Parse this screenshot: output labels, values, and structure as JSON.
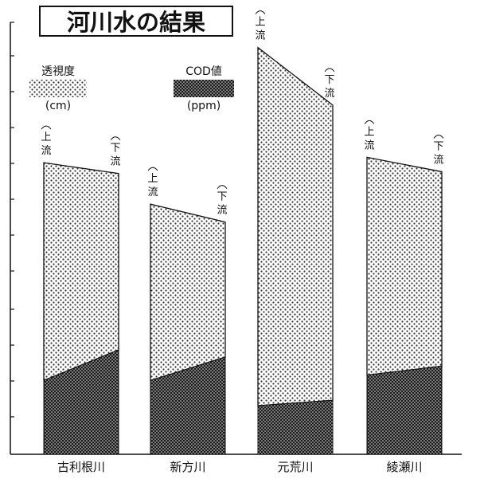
{
  "chart_data": {
    "type": "area",
    "title": "河川水の結果",
    "legend": [
      {
        "name": "透視度",
        "unit": "(cm)",
        "pattern": "light-dots"
      },
      {
        "name": "COD値",
        "unit": "(ppm)",
        "pattern": "dark-dots"
      }
    ],
    "point_labels": {
      "upstream": "上流",
      "downstream": "下流"
    },
    "categories": [
      "古利根川",
      "新方川",
      "元荒川",
      "綾瀬川"
    ],
    "series": [
      {
        "name": "透視度",
        "upstream": [
          16.2,
          13.9,
          22.6,
          16.5
        ],
        "downstream": [
          15.6,
          12.9,
          19.4,
          15.7
        ]
      },
      {
        "name": "COD値",
        "upstream": [
          4.1,
          4.1,
          2.7,
          4.4
        ],
        "downstream": [
          5.8,
          5.4,
          3.0,
          4.9
        ]
      }
    ],
    "ylim": [
      0,
      24
    ],
    "colors": {
      "axis": "#111111",
      "dots_light": "#333333",
      "dots_dark": "#111111",
      "paper": "#ffffff"
    }
  }
}
